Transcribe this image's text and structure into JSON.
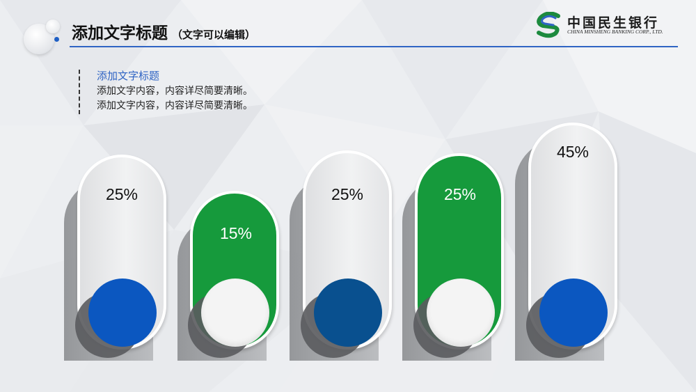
{
  "header": {
    "title": "添加文字标题",
    "subtitle": "（文字可以编辑）"
  },
  "logo": {
    "name_cn": "中国民生银行",
    "name_en": "CHINA MINSHENG BANKING CORP., LTD.",
    "icon": "minsheng-s-logo-icon"
  },
  "text_block": {
    "heading": "添加文字标题",
    "lines": [
      "添加文字内容，内容详尽简要清晰。",
      "添加文字内容，内容详尽简要清晰。"
    ]
  },
  "pills": [
    {
      "label": "25%",
      "value": 25,
      "style": "grey",
      "circle_color": "#0b57c0"
    },
    {
      "label": "15%",
      "value": 15,
      "style": "green",
      "circle_color": "#f4f4f4"
    },
    {
      "label": "25%",
      "value": 25,
      "style": "grey",
      "circle_color": "#09508f"
    },
    {
      "label": "25%",
      "value": 25,
      "style": "green",
      "circle_color": "#f4f4f4"
    },
    {
      "label": "45%",
      "value": 45,
      "style": "grey",
      "circle_color": "#0b57c0"
    }
  ],
  "colors": {
    "accent_blue": "#2f64c4",
    "green": "#169a3c",
    "dark_blue": "#09508f",
    "blue": "#0b57c0"
  }
}
